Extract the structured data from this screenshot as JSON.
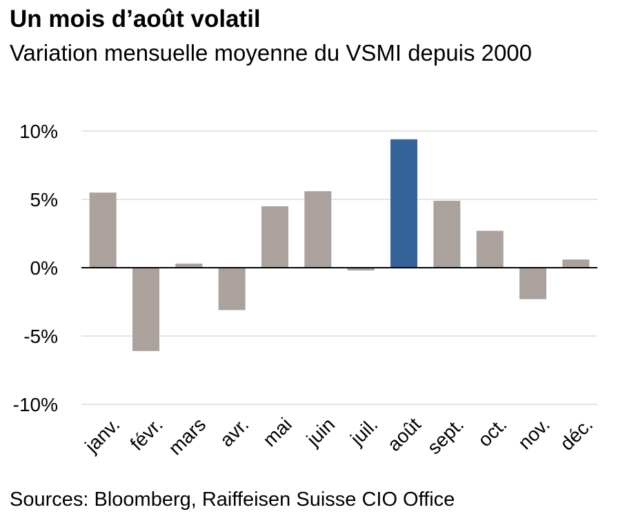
{
  "chart_data": {
    "type": "bar",
    "title": "Un mois d’août volatil",
    "subtitle": "Variation mensuelle moyenne du VSMI depuis 2000",
    "source": "Sources: Bloomberg, Raiffeisen Suisse CIO Office",
    "categories": [
      "janv.",
      "févr.",
      "mars",
      "avr.",
      "mai",
      "juin",
      "juil.",
      "août",
      "sept.",
      "oct.",
      "nov.",
      "déc."
    ],
    "values": [
      5.5,
      -6.1,
      0.3,
      -3.1,
      4.5,
      5.6,
      -0.2,
      9.4,
      4.9,
      2.7,
      -2.3,
      0.6
    ],
    "highlight_index": 7,
    "ylim": [
      -10,
      10
    ],
    "yticks": [
      10,
      5,
      0,
      -5,
      -10
    ],
    "ytick_labels": [
      "10%",
      "5%",
      "0%",
      "-5%",
      "-10%"
    ],
    "grid": true,
    "colors": {
      "default": "#aba19d",
      "highlight": "#34649a",
      "grid": "#c8c8c8",
      "zero": "#000000"
    }
  }
}
